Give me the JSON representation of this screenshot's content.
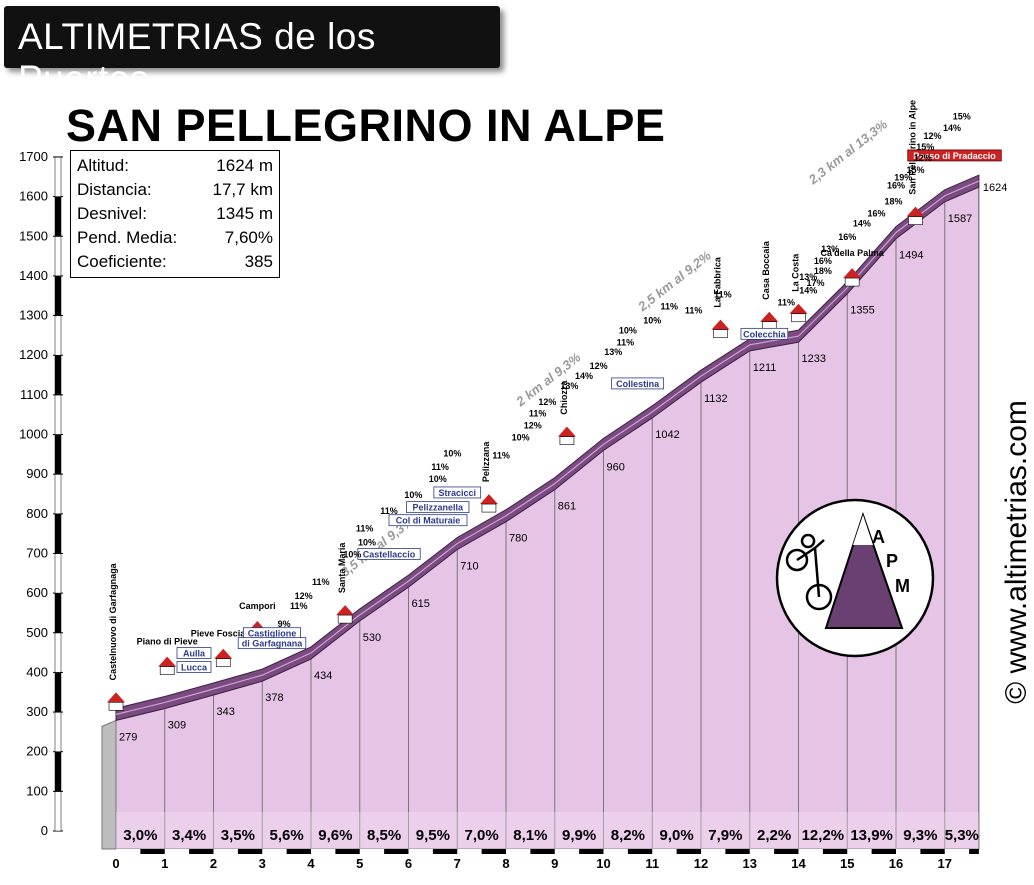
{
  "header": {
    "brand": "ALTIMETRIAS de los Puertos",
    "title": "SAN PELLEGRINO IN ALPE",
    "website": "© www.altimetrias.com"
  },
  "stats": [
    {
      "label": "Altitud:",
      "value": "1624 m"
    },
    {
      "label": "Distancia:",
      "value": "17,7 km"
    },
    {
      "label": "Desnivel:",
      "value": "1345 m"
    },
    {
      "label": "Pend. Media:",
      "value": "7,60%"
    },
    {
      "label": "Coeficiente:",
      "value": "385"
    }
  ],
  "logo": {
    "text": "APM"
  },
  "chart_data": {
    "type": "area",
    "xlim": [
      0,
      17.7
    ],
    "ylim": [
      0,
      1700
    ],
    "x_ticks": [
      "0",
      "1",
      "2",
      "3",
      "4",
      "5",
      "6",
      "7",
      "8",
      "9",
      "10",
      "11",
      "12",
      "13",
      "14",
      "15",
      "16",
      "17"
    ],
    "y_ticks": [
      "0",
      "100",
      "200",
      "300",
      "400",
      "500",
      "600",
      "700",
      "800",
      "900",
      "1000",
      "1100",
      "1200",
      "1300",
      "1400",
      "1500",
      "1600",
      "1700"
    ],
    "profile": [
      {
        "x": 0,
        "y": 279
      },
      {
        "x": 1,
        "y": 309
      },
      {
        "x": 2,
        "y": 343
      },
      {
        "x": 3,
        "y": 378
      },
      {
        "x": 4,
        "y": 434
      },
      {
        "x": 5,
        "y": 530
      },
      {
        "x": 6,
        "y": 615
      },
      {
        "x": 7,
        "y": 710
      },
      {
        "x": 8,
        "y": 780
      },
      {
        "x": 9,
        "y": 861
      },
      {
        "x": 10,
        "y": 960
      },
      {
        "x": 11,
        "y": 1042
      },
      {
        "x": 12,
        "y": 1132
      },
      {
        "x": 13,
        "y": 1211
      },
      {
        "x": 14,
        "y": 1233
      },
      {
        "x": 15,
        "y": 1355
      },
      {
        "x": 16,
        "y": 1494
      },
      {
        "x": 17,
        "y": 1587
      },
      {
        "x": 17.7,
        "y": 1624
      }
    ],
    "altitude_labels": [
      "279",
      "309",
      "343",
      "378",
      "434",
      "530",
      "615",
      "710",
      "780",
      "861",
      "960",
      "1042",
      "1132",
      "1211",
      "1233",
      "1355",
      "1494",
      "1587",
      "1624"
    ],
    "gradients": [
      "3,0%",
      "3,4%",
      "3,5%",
      "5,6%",
      "9,6%",
      "8,5%",
      "9,5%",
      "7,0%",
      "8,1%",
      "9,9%",
      "8,2%",
      "9,0%",
      "7,9%",
      "2,2%",
      "12,2%",
      "13,9%",
      "9,3%",
      "5,3%"
    ],
    "stretches": [
      {
        "text": "3,5 km al 9,3%",
        "x": 4.7,
        "y": 640
      },
      {
        "text": "2 km al 9,3%",
        "x": 8.3,
        "y": 1070
      },
      {
        "text": "2,5 km al 9,2%",
        "x": 10.8,
        "y": 1310
      },
      {
        "text": "2,3 km al 13,3%",
        "x": 14.3,
        "y": 1630
      }
    ],
    "places": [
      {
        "text": "Castelnuovo di Garfagnaga",
        "x": 0.0,
        "y": 380,
        "vertical": true
      },
      {
        "text": "Piano di Pieve",
        "x": 1.05,
        "y": 470
      },
      {
        "text": "Pieve Fosciana",
        "x": 2.2,
        "y": 490
      },
      {
        "text": "Campori",
        "x": 2.9,
        "y": 560
      },
      {
        "text": "Santa Maria",
        "x": 4.7,
        "y": 600,
        "vertical": true
      },
      {
        "text": "Pelizzana",
        "x": 7.65,
        "y": 880,
        "vertical": true
      },
      {
        "text": "Chiozza",
        "x": 9.25,
        "y": 1050,
        "vertical": true
      },
      {
        "text": "La Fabbrica",
        "x": 12.4,
        "y": 1320,
        "vertical": true
      },
      {
        "text": "Casa Boccaia",
        "x": 13.4,
        "y": 1340,
        "vertical": true
      },
      {
        "text": "La Costa",
        "x": 14.0,
        "y": 1360,
        "vertical": true
      },
      {
        "text": "Ca'della Palma",
        "x": 15.1,
        "y": 1450
      },
      {
        "text": "San Pellegrino in Alpe",
        "x": 16.4,
        "y": 1605,
        "vertical": true
      }
    ],
    "junctions": [
      {
        "text": "Aulla",
        "x": 1.6,
        "y": 440
      },
      {
        "text": "Lucca",
        "x": 1.6,
        "y": 405
      },
      {
        "text": "Castiglione",
        "x": 3.2,
        "y": 490
      },
      {
        "text": "di Garfagnana",
        "x": 3.2,
        "y": 465
      },
      {
        "text": "Castellaccio",
        "x": 5.6,
        "y": 690
      },
      {
        "text": "Col di Maturaie",
        "x": 6.4,
        "y": 775
      },
      {
        "text": "Pelizzanella",
        "x": 6.6,
        "y": 808
      },
      {
        "text": "Stracicci",
        "x": 7.0,
        "y": 845
      },
      {
        "text": "Collestina",
        "x": 10.7,
        "y": 1120
      },
      {
        "text": "Colecchia",
        "x": 13.3,
        "y": 1245
      },
      {
        "text": "Passo di Pradaccio",
        "x": 17.2,
        "y": 1695
      }
    ],
    "detail_gradients": [
      {
        "text": "9%",
        "x": 3.45,
        "y": 515
      },
      {
        "text": "11%",
        "x": 3.75,
        "y": 560
      },
      {
        "text": "12%",
        "x": 3.85,
        "y": 585
      },
      {
        "text": "11%",
        "x": 4.2,
        "y": 620
      },
      {
        "text": "10%",
        "x": 4.85,
        "y": 690
      },
      {
        "text": "10%",
        "x": 5.15,
        "y": 720
      },
      {
        "text": "11%",
        "x": 5.1,
        "y": 755
      },
      {
        "text": "11%",
        "x": 5.6,
        "y": 800
      },
      {
        "text": "10%",
        "x": 6.1,
        "y": 840
      },
      {
        "text": "10%",
        "x": 6.6,
        "y": 880
      },
      {
        "text": "11%",
        "x": 6.65,
        "y": 910
      },
      {
        "text": "10%",
        "x": 6.9,
        "y": 945
      },
      {
        "text": "11%",
        "x": 7.9,
        "y": 940
      },
      {
        "text": "10%",
        "x": 8.3,
        "y": 985
      },
      {
        "text": "12%",
        "x": 8.55,
        "y": 1015
      },
      {
        "text": "11%",
        "x": 8.65,
        "y": 1045
      },
      {
        "text": "12%",
        "x": 8.85,
        "y": 1075
      },
      {
        "text": "13%",
        "x": 9.3,
        "y": 1115
      },
      {
        "text": "14%",
        "x": 9.6,
        "y": 1140
      },
      {
        "text": "12%",
        "x": 9.9,
        "y": 1165
      },
      {
        "text": "13%",
        "x": 10.2,
        "y": 1200
      },
      {
        "text": "11%",
        "x": 10.45,
        "y": 1225
      },
      {
        "text": "10%",
        "x": 10.5,
        "y": 1255
      },
      {
        "text": "10%",
        "x": 11.0,
        "y": 1280
      },
      {
        "text": "11%",
        "x": 11.35,
        "y": 1315
      },
      {
        "text": "11%",
        "x": 11.85,
        "y": 1305
      },
      {
        "text": "11%",
        "x": 12.45,
        "y": 1345
      },
      {
        "text": "11%",
        "x": 13.75,
        "y": 1325
      },
      {
        "text": "13%",
        "x": 14.2,
        "y": 1390
      },
      {
        "text": "14%",
        "x": 14.2,
        "y": 1355
      },
      {
        "text": "17%",
        "x": 14.35,
        "y": 1375
      },
      {
        "text": "16%",
        "x": 14.5,
        "y": 1430
      },
      {
        "text": "18%",
        "x": 14.5,
        "y": 1405
      },
      {
        "text": "13%",
        "x": 14.65,
        "y": 1460
      },
      {
        "text": "16%",
        "x": 15.0,
        "y": 1490
      },
      {
        "text": "14%",
        "x": 15.3,
        "y": 1525
      },
      {
        "text": "16%",
        "x": 15.6,
        "y": 1550
      },
      {
        "text": "18%",
        "x": 15.95,
        "y": 1580
      },
      {
        "text": "16%",
        "x": 16.0,
        "y": 1620
      },
      {
        "text": "19%",
        "x": 16.15,
        "y": 1640
      },
      {
        "text": "15%",
        "x": 16.4,
        "y": 1660
      },
      {
        "text": "12%",
        "x": 16.55,
        "y": 1690
      },
      {
        "text": "15%",
        "x": 16.6,
        "y": 1718
      },
      {
        "text": "12%",
        "x": 16.75,
        "y": 1745
      },
      {
        "text": "14%",
        "x": 17.15,
        "y": 1765
      },
      {
        "text": "15%",
        "x": 17.35,
        "y": 1795
      }
    ],
    "colors": {
      "fill": "#e6c4e6",
      "road": "#7a4a80",
      "road_dark": "#3f2246",
      "label_red": "#cc2222",
      "junction_blue": "#2a3a8c"
    }
  }
}
